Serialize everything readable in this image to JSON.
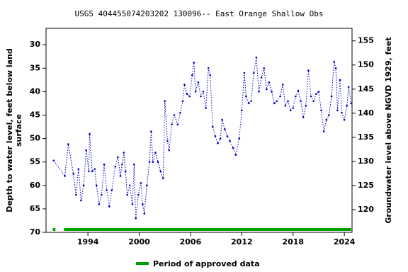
{
  "chart_data": {
    "type": "line",
    "title": "USGS 404455074203202 130096-- East Orange Shallow Obs",
    "y_label": [
      "Depth to water level, feet below land",
      "surface"
    ],
    "y2_label": "Groundwater level above NGVD 1929, feet",
    "xlim": [
      1989.1,
      2024.9
    ],
    "xticks": [
      1994,
      2000,
      2006,
      2012,
      2018,
      2024
    ],
    "ylim": [
      70,
      26.5
    ],
    "yticks": [
      30,
      35,
      40,
      45,
      50,
      55,
      60,
      65,
      70
    ],
    "y2lim": [
      115.3,
      157.6
    ],
    "y2ticks": [
      120,
      125,
      130,
      135,
      140,
      145,
      150,
      155
    ],
    "x": [
      1990.0,
      1991.3,
      1991.7,
      1992.3,
      1992.6,
      1992.9,
      1993.2,
      1993.5,
      1993.8,
      1994.1,
      1994.2,
      1994.5,
      1994.8,
      1995.0,
      1995.3,
      1995.6,
      1995.9,
      1996.2,
      1996.5,
      1996.8,
      1997.2,
      1997.5,
      1997.8,
      1998.0,
      1998.2,
      1998.4,
      1998.6,
      1998.9,
      1999.2,
      1999.4,
      1999.6,
      1999.9,
      2000.2,
      2000.4,
      2000.6,
      2000.9,
      2001.2,
      2001.4,
      2001.6,
      2001.9,
      2002.2,
      2002.5,
      2002.8,
      2003.0,
      2003.3,
      2003.5,
      2003.8,
      2004.1,
      2004.5,
      2004.8,
      2005.1,
      2005.3,
      2005.6,
      2005.9,
      2006.2,
      2006.4,
      2006.6,
      2006.9,
      2007.2,
      2007.5,
      2007.8,
      2008.1,
      2008.3,
      2008.6,
      2008.9,
      2009.2,
      2009.5,
      2009.7,
      2010.0,
      2010.3,
      2010.6,
      2011.0,
      2011.3,
      2011.7,
      2012.0,
      2012.3,
      2012.5,
      2012.8,
      2013.1,
      2013.4,
      2013.7,
      2014.0,
      2014.3,
      2014.6,
      2014.9,
      2015.2,
      2015.5,
      2015.8,
      2016.1,
      2016.5,
      2016.8,
      2017.1,
      2017.4,
      2017.7,
      2018.0,
      2018.3,
      2018.6,
      2018.9,
      2019.2,
      2019.5,
      2019.8,
      2020.1,
      2020.4,
      2020.7,
      2021.0,
      2021.3,
      2021.6,
      2021.9,
      2022.2,
      2022.5,
      2022.8,
      2023.0,
      2023.2,
      2023.5,
      2023.7,
      2024.0,
      2024.3,
      2024.5,
      2024.8
    ],
    "series": [
      {
        "color": "#0000cc",
        "values": [
          54.7,
          58,
          51.2,
          57.5,
          62,
          56.5,
          63.2,
          60,
          52.5,
          57,
          49,
          57,
          56.5,
          60,
          64,
          62,
          55.5,
          61,
          64.5,
          61,
          56,
          54,
          58,
          55.5,
          53,
          57,
          62,
          60,
          64,
          55.5,
          67,
          62,
          59.5,
          64,
          66,
          60,
          55,
          48.5,
          55,
          53,
          55,
          57,
          58.5,
          42,
          50.5,
          52.5,
          47,
          45,
          47,
          44.5,
          42,
          38.5,
          40.5,
          41,
          36.5,
          33.8,
          40,
          38,
          41,
          40,
          43.5,
          35,
          36.5,
          47.5,
          49.5,
          51,
          50,
          46,
          48,
          49.5,
          50.5,
          52,
          53.5,
          50,
          44,
          36,
          41,
          42.5,
          42,
          36,
          32.7,
          40,
          37,
          35,
          39.5,
          38,
          40,
          42.5,
          42,
          41,
          38.5,
          43,
          42,
          44,
          43.5,
          41,
          39.8,
          42,
          45.5,
          43,
          35.5,
          41,
          42,
          40.5,
          40,
          44,
          48.5,
          46,
          45,
          41,
          33.6,
          35,
          44,
          37.5,
          44.5,
          46,
          43,
          39,
          42.5
        ]
      }
    ],
    "approved": {
      "name": "Period of approved data",
      "color": "#00a000",
      "periods": [
        [
          1989.9,
          1990.2
        ],
        [
          1991.2,
          2024.8
        ]
      ]
    }
  }
}
